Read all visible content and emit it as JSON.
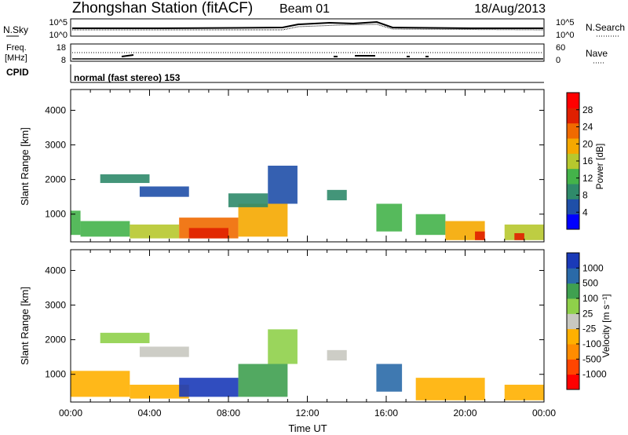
{
  "header": {
    "title": "Zhongshan Station (fitACF)",
    "beam": "Beam 01",
    "date": "18/Aug/2013"
  },
  "noise_panel": {
    "left_label": "N.Sky",
    "left_top_tick": "10^5",
    "left_bottom_tick": "10^0",
    "right_label": "N.Search",
    "right_top_tick": "10^5",
    "right_bottom_tick": "10^0"
  },
  "freq_panel": {
    "left_label_1": "Freq.",
    "left_label_2": "[MHz]",
    "left_top_tick": "18",
    "left_bottom_tick": "8",
    "right_label": "Nave",
    "right_top_tick": "60",
    "right_bottom_tick": "0"
  },
  "cpid_panel": {
    "label": "CPID",
    "value": "normal (fast stereo) 153"
  },
  "colors": {
    "power": [
      "#0000ff",
      "#1f4fa8",
      "#2f8a6a",
      "#44b34a",
      "#b7c82e",
      "#f5a800",
      "#f06a00",
      "#e02000",
      "#ff0000"
    ],
    "velocity": [
      "#ff0000",
      "#ff4500",
      "#ff8c00",
      "#ffb000",
      "#c8c8c0",
      "#8fd04a",
      "#3fa050",
      "#2a6aa8",
      "#1a3ab8"
    ]
  },
  "chart_data": [
    {
      "type": "heatmap",
      "name": "power",
      "ylabel": "Slant Range [km]",
      "y_ticks": [
        "1000",
        "2000",
        "3000",
        "4000"
      ],
      "ylim": [
        200,
        4600
      ],
      "x_ticks": [
        "00:00",
        "04:00",
        "08:00",
        "12:00",
        "16:00",
        "20:00",
        "00:00"
      ],
      "xlim_hours": [
        0,
        24
      ],
      "colorbar_label": "Power [dB]",
      "colorbar_ticks": [
        "4",
        "8",
        "12",
        "16",
        "20",
        "24",
        "28"
      ],
      "colorbar_range": [
        0,
        32
      ],
      "regions": [
        {
          "t0": 0.0,
          "t1": 0.5,
          "r0": 400,
          "r1": 1100,
          "v": 14
        },
        {
          "t0": 0.5,
          "t1": 3.0,
          "r0": 350,
          "r1": 800,
          "v": 14
        },
        {
          "t0": 1.5,
          "t1": 4.0,
          "r0": 1900,
          "r1": 2150,
          "v": 8
        },
        {
          "t0": 3.5,
          "t1": 6.0,
          "r0": 1500,
          "r1": 1800,
          "v": 6
        },
        {
          "t0": 3.0,
          "t1": 5.5,
          "r0": 300,
          "r1": 700,
          "v": 16
        },
        {
          "t0": 5.5,
          "t1": 8.5,
          "r0": 300,
          "r1": 900,
          "v": 22
        },
        {
          "t0": 6.0,
          "t1": 8.0,
          "r0": 300,
          "r1": 600,
          "v": 28
        },
        {
          "t0": 8.5,
          "t1": 11.0,
          "r0": 350,
          "r1": 1300,
          "v": 18
        },
        {
          "t0": 8.0,
          "t1": 10.0,
          "r0": 1200,
          "r1": 1600,
          "v": 8
        },
        {
          "t0": 10.0,
          "t1": 11.5,
          "r0": 1300,
          "r1": 2400,
          "v": 6
        },
        {
          "t0": 13.0,
          "t1": 14.0,
          "r0": 1400,
          "r1": 1700,
          "v": 8
        },
        {
          "t0": 15.5,
          "t1": 16.8,
          "r0": 500,
          "r1": 1300,
          "v": 14
        },
        {
          "t0": 17.5,
          "t1": 19.0,
          "r0": 400,
          "r1": 1000,
          "v": 12
        },
        {
          "t0": 19.0,
          "t1": 21.0,
          "r0": 250,
          "r1": 800,
          "v": 18
        },
        {
          "t0": 20.5,
          "t1": 21.0,
          "r0": 250,
          "r1": 500,
          "v": 28
        },
        {
          "t0": 22.0,
          "t1": 24.0,
          "r0": 250,
          "r1": 700,
          "v": 16
        },
        {
          "t0": 22.5,
          "t1": 23.0,
          "r0": 250,
          "r1": 450,
          "v": 28
        }
      ]
    },
    {
      "type": "heatmap",
      "name": "velocity",
      "ylabel": "Slant Range [km]",
      "y_ticks": [
        "1000",
        "2000",
        "3000",
        "4000"
      ],
      "ylim": [
        200,
        4600
      ],
      "x_ticks": [
        "00:00",
        "04:00",
        "08:00",
        "12:00",
        "16:00",
        "20:00",
        "00:00"
      ],
      "xlim_hours": [
        0,
        24
      ],
      "xlabel": "Time UT",
      "colorbar_label": "Velocity [m s⁻¹]",
      "colorbar_ticks": [
        "-1000",
        "-500",
        "-100",
        "-25",
        "25",
        "100",
        "500",
        "1000"
      ],
      "regions": [
        {
          "t0": 0.0,
          "t1": 3.0,
          "r0": 350,
          "r1": 1100,
          "v": -100
        },
        {
          "t0": 1.5,
          "t1": 4.0,
          "r0": 1900,
          "r1": 2200,
          "v": 25
        },
        {
          "t0": 3.5,
          "t1": 6.0,
          "r0": 1500,
          "r1": 1800,
          "v": 0
        },
        {
          "t0": 3.0,
          "t1": 6.0,
          "r0": 300,
          "r1": 700,
          "v": -100
        },
        {
          "t0": 5.5,
          "t1": 8.5,
          "r0": 350,
          "r1": 900,
          "v": 1000
        },
        {
          "t0": 8.5,
          "t1": 11.0,
          "r0": 350,
          "r1": 1300,
          "v": 100
        },
        {
          "t0": 10.0,
          "t1": 11.5,
          "r0": 1300,
          "r1": 2300,
          "v": 25
        },
        {
          "t0": 13.0,
          "t1": 14.0,
          "r0": 1400,
          "r1": 1700,
          "v": 0
        },
        {
          "t0": 15.5,
          "t1": 16.8,
          "r0": 500,
          "r1": 1300,
          "v": 500
        },
        {
          "t0": 17.5,
          "t1": 21.0,
          "r0": 250,
          "r1": 900,
          "v": -100
        },
        {
          "t0": 22.0,
          "t1": 24.0,
          "r0": 250,
          "r1": 700,
          "v": -100
        }
      ]
    }
  ]
}
